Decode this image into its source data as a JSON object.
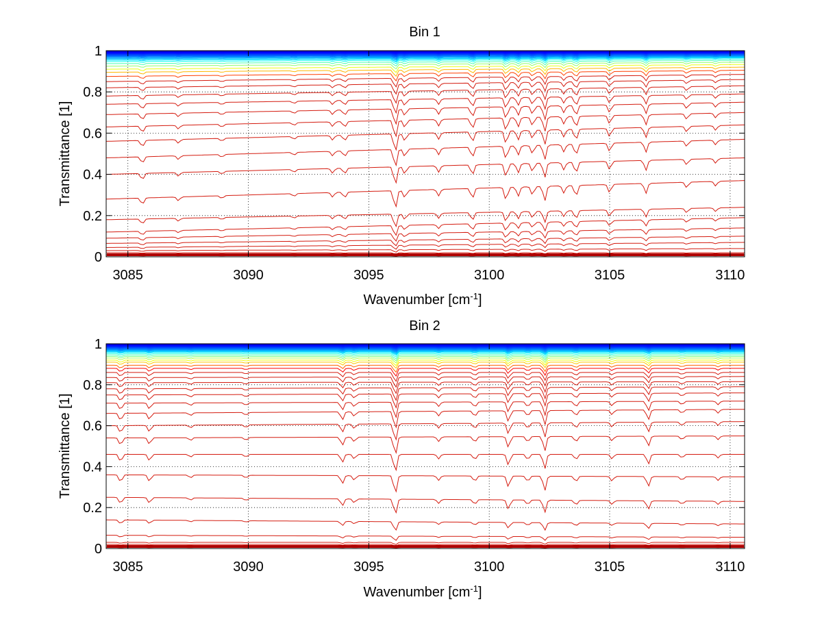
{
  "chart_data": [
    {
      "type": "line",
      "title": "Bin 1",
      "xlabel": "Wavenumber [cm",
      "xlabel_sup": "-1",
      "xlabel_end": "]",
      "ylabel": "Transmittance [1]",
      "xlim": [
        3084.1,
        3110.6
      ],
      "ylim": [
        0,
        1
      ],
      "grid": true,
      "x_ticks": [
        3085,
        3090,
        3095,
        3100,
        3105,
        3110
      ],
      "x_tick_labels": [
        "3085",
        "3090",
        "3095",
        "3100",
        "3105",
        "3110"
      ],
      "y_ticks": [
        0,
        0.2,
        0.4,
        0.6,
        0.8,
        1
      ],
      "y_tick_labels": [
        "0",
        "0.2",
        "0.4",
        "0.6",
        "0.8",
        "1"
      ],
      "absorption_lines": [
        {
          "x": 3085.6,
          "depth": 0.35
        },
        {
          "x": 3087.1,
          "depth": 0.2
        },
        {
          "x": 3088.9,
          "depth": 0.15
        },
        {
          "x": 3091.9,
          "depth": 0.15
        },
        {
          "x": 3093.5,
          "depth": 0.25
        },
        {
          "x": 3094.0,
          "depth": 0.3
        },
        {
          "x": 3096.1,
          "depth": 1.0
        },
        {
          "x": 3096.5,
          "depth": 0.4
        },
        {
          "x": 3097.9,
          "depth": 0.35
        },
        {
          "x": 3099.3,
          "depth": 0.55
        },
        {
          "x": 3100.7,
          "depth": 0.7
        },
        {
          "x": 3101.2,
          "depth": 0.5
        },
        {
          "x": 3101.8,
          "depth": 0.45
        },
        {
          "x": 3102.3,
          "depth": 0.8
        },
        {
          "x": 3103.1,
          "depth": 0.4
        },
        {
          "x": 3103.6,
          "depth": 0.6
        },
        {
          "x": 3105.0,
          "depth": 0.45
        },
        {
          "x": 3106.5,
          "depth": 0.55
        },
        {
          "x": 3108.2,
          "depth": 0.3
        },
        {
          "x": 3109.4,
          "depth": 0.25
        }
      ],
      "series_start": [
        0.0,
        0.005,
        0.012,
        0.02,
        0.03,
        0.045,
        0.065,
        0.09,
        0.12,
        0.18,
        0.28,
        0.4,
        0.48,
        0.56,
        0.63,
        0.69,
        0.74,
        0.78,
        0.82,
        0.85,
        0.875,
        0.895,
        0.91,
        0.925,
        0.937,
        0.947,
        0.955,
        0.962,
        0.968,
        0.973,
        0.977,
        0.98,
        0.983,
        0.986,
        0.988,
        0.99,
        0.992,
        0.994,
        0.996,
        0.998
      ],
      "series_end": [
        0.0,
        0.005,
        0.012,
        0.02,
        0.04,
        0.07,
        0.1,
        0.14,
        0.19,
        0.24,
        0.37,
        0.48,
        0.57,
        0.64,
        0.7,
        0.75,
        0.79,
        0.83,
        0.86,
        0.885,
        0.905,
        0.92,
        0.933,
        0.944,
        0.953,
        0.96,
        0.966,
        0.971,
        0.975,
        0.979,
        0.982,
        0.985,
        0.987,
        0.989,
        0.991,
        0.993,
        0.995,
        0.996,
        0.998,
        0.999
      ]
    },
    {
      "type": "line",
      "title": "Bin 2",
      "xlabel": "Wavenumber [cm",
      "xlabel_sup": "-1",
      "xlabel_end": "]",
      "ylabel": "Transmittance [1]",
      "xlim": [
        3084.1,
        3110.6
      ],
      "ylim": [
        0,
        1
      ],
      "grid": true,
      "x_ticks": [
        3085,
        3090,
        3095,
        3100,
        3105,
        3110
      ],
      "x_tick_labels": [
        "3085",
        "3090",
        "3095",
        "3100",
        "3105",
        "3110"
      ],
      "y_ticks": [
        0,
        0.2,
        0.4,
        0.6,
        0.8,
        1
      ],
      "y_tick_labels": [
        "0",
        "0.2",
        "0.4",
        "0.6",
        "0.8",
        "1"
      ],
      "absorption_lines": [
        {
          "x": 3084.7,
          "depth": 0.4
        },
        {
          "x": 3085.9,
          "depth": 0.35
        },
        {
          "x": 3087.6,
          "depth": 0.15
        },
        {
          "x": 3089.9,
          "depth": 0.15
        },
        {
          "x": 3093.9,
          "depth": 0.45
        },
        {
          "x": 3094.4,
          "depth": 0.25
        },
        {
          "x": 3096.1,
          "depth": 1.0
        },
        {
          "x": 3097.9,
          "depth": 0.25
        },
        {
          "x": 3099.4,
          "depth": 0.3
        },
        {
          "x": 3100.8,
          "depth": 0.6
        },
        {
          "x": 3101.6,
          "depth": 0.3
        },
        {
          "x": 3102.3,
          "depth": 0.8
        },
        {
          "x": 3103.6,
          "depth": 0.3
        },
        {
          "x": 3105.1,
          "depth": 0.25
        },
        {
          "x": 3106.6,
          "depth": 0.55
        },
        {
          "x": 3108.0,
          "depth": 0.2
        },
        {
          "x": 3109.5,
          "depth": 0.2
        }
      ],
      "series_start": [
        0.0,
        0.005,
        0.012,
        0.02,
        0.03,
        0.065,
        0.14,
        0.25,
        0.36,
        0.46,
        0.54,
        0.6,
        0.66,
        0.71,
        0.75,
        0.78,
        0.81,
        0.835,
        0.86,
        0.88,
        0.895,
        0.91,
        0.92,
        0.93,
        0.938,
        0.945,
        0.952,
        0.958,
        0.963,
        0.968,
        0.972,
        0.976,
        0.98,
        0.983,
        0.986,
        0.989,
        0.992,
        0.995,
        0.997,
        0.999
      ],
      "series_end": [
        0.0,
        0.005,
        0.012,
        0.02,
        0.03,
        0.055,
        0.12,
        0.23,
        0.35,
        0.46,
        0.55,
        0.62,
        0.68,
        0.72,
        0.76,
        0.79,
        0.815,
        0.84,
        0.86,
        0.88,
        0.895,
        0.91,
        0.92,
        0.93,
        0.938,
        0.945,
        0.952,
        0.958,
        0.963,
        0.968,
        0.972,
        0.976,
        0.98,
        0.983,
        0.986,
        0.989,
        0.992,
        0.995,
        0.997,
        0.999
      ]
    }
  ]
}
